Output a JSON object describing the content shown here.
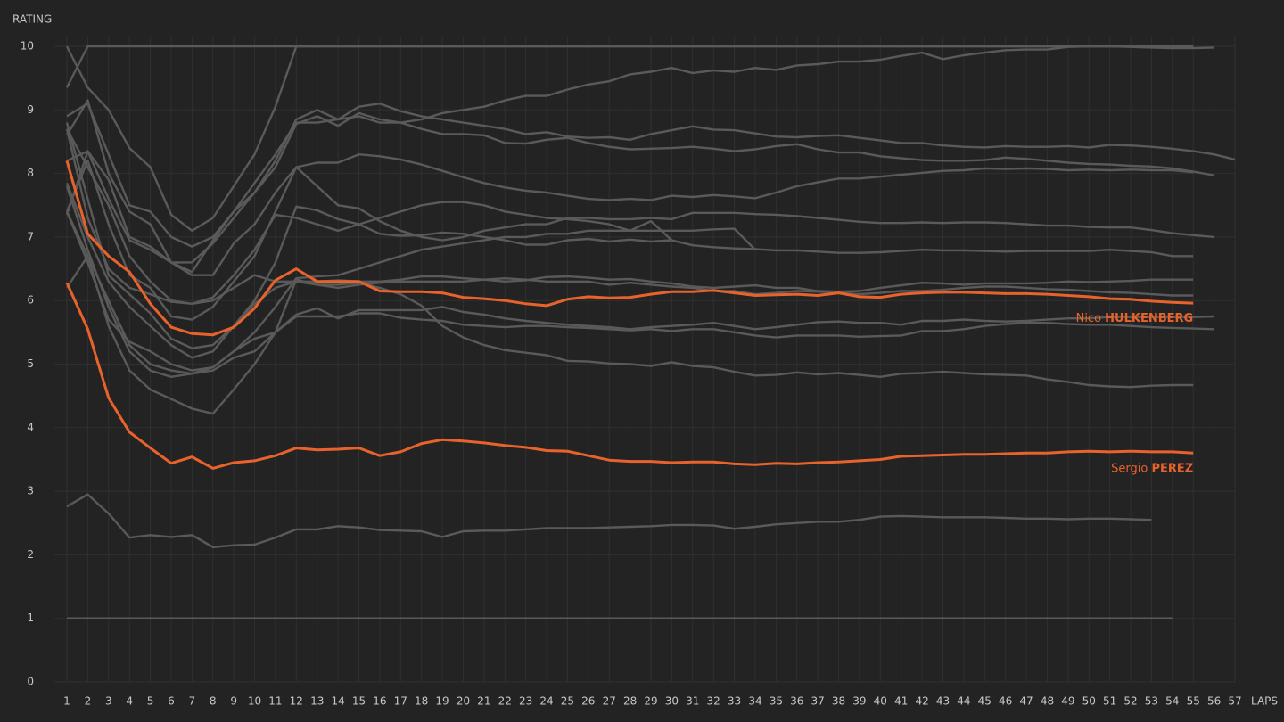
{
  "chart_data": {
    "type": "line",
    "y_label": "RATING",
    "x_label": "LAPS",
    "xlim": [
      1,
      57
    ],
    "ylim": [
      0,
      10
    ],
    "xticks": [
      1,
      2,
      3,
      4,
      5,
      6,
      7,
      8,
      9,
      10,
      11,
      12,
      13,
      14,
      15,
      16,
      17,
      18,
      19,
      20,
      21,
      22,
      23,
      24,
      25,
      26,
      27,
      28,
      29,
      30,
      31,
      32,
      33,
      34,
      35,
      36,
      37,
      38,
      39,
      40,
      41,
      42,
      43,
      44,
      45,
      46,
      47,
      48,
      49,
      50,
      51,
      52,
      53,
      54,
      55,
      56,
      57
    ],
    "yticks": [
      0,
      1,
      2,
      3,
      4,
      5,
      6,
      7,
      8,
      9,
      10
    ],
    "grid": true,
    "x": [
      1,
      2,
      3,
      4,
      5,
      6,
      7,
      8,
      9,
      10,
      11,
      12,
      13,
      14,
      15,
      16,
      17,
      18,
      19,
      20,
      21,
      22,
      23,
      24,
      25,
      26,
      27,
      28,
      29,
      30,
      31,
      32,
      33,
      34,
      35,
      36,
      37,
      38,
      39,
      40,
      41,
      42,
      43,
      44,
      45,
      46,
      47,
      48,
      49,
      50,
      51,
      52,
      53,
      54,
      55,
      56,
      57
    ],
    "series": [
      {
        "color": "#5a5a5a",
        "values": [
          1,
          1,
          1,
          1,
          1,
          1,
          1,
          1,
          1,
          1,
          1,
          1,
          1,
          1,
          1,
          1,
          1,
          1,
          1,
          1,
          1,
          1,
          1,
          1,
          1,
          1,
          1,
          1,
          1,
          1,
          1,
          1,
          1,
          1,
          1,
          1,
          1,
          1,
          1,
          1,
          1,
          1,
          1,
          1,
          1,
          1,
          1,
          1,
          1,
          1,
          1,
          1,
          1,
          1,
          null,
          null,
          null
        ]
      },
      {
        "color": "#5a5a5a",
        "values": [
          2.76,
          2.95,
          2.65,
          2.27,
          2.31,
          2.28,
          2.31,
          2.12,
          2.15,
          2.16,
          2.27,
          2.4,
          2.4,
          2.45,
          2.43,
          2.39,
          2.38,
          2.37,
          2.28,
          2.37,
          2.38,
          2.38,
          2.4,
          2.42,
          2.42,
          2.42,
          2.43,
          2.44,
          2.45,
          2.47,
          2.47,
          2.46,
          2.41,
          2.44,
          2.48,
          2.5,
          2.52,
          2.52,
          2.55,
          2.6,
          2.61,
          2.6,
          2.59,
          2.59,
          2.59,
          2.58,
          2.57,
          2.57,
          2.56,
          2.57,
          2.57,
          2.56,
          2.55,
          null,
          null,
          null,
          null
        ]
      },
      {
        "color": "#5a5a5a",
        "values": [
          9.35,
          10,
          10,
          10,
          10,
          10,
          10,
          10,
          10,
          10,
          10,
          10,
          10,
          10,
          10,
          10,
          10,
          10,
          10,
          10,
          10,
          10,
          10,
          10,
          10,
          10,
          10,
          10,
          10,
          10,
          10,
          10,
          10,
          10,
          10,
          10,
          10,
          10,
          10,
          10,
          10,
          10,
          10,
          10,
          10,
          10,
          10,
          10,
          10,
          10,
          10,
          10,
          10,
          10,
          10,
          null,
          null
        ]
      },
      {
        "color": "#5a5a5a",
        "values": [
          10,
          9.35,
          9.0,
          8.4,
          8.1,
          7.35,
          7.1,
          7.3,
          7.8,
          8.3,
          9.05,
          10,
          10,
          10,
          10,
          10,
          10,
          10,
          10,
          10,
          10,
          10,
          10,
          10,
          10,
          10,
          10,
          10,
          10,
          10,
          10,
          10,
          10,
          10,
          10,
          10,
          10,
          10,
          10,
          10,
          10,
          10,
          10,
          10,
          10,
          10,
          10,
          10,
          10,
          10,
          10,
          10,
          10,
          10,
          10,
          null,
          null
        ]
      },
      {
        "color": "#5a5a5a",
        "values": [
          8.6,
          9.15,
          8.0,
          7.4,
          7.2,
          6.6,
          6.45,
          6.95,
          7.4,
          7.85,
          8.3,
          8.8,
          8.8,
          8.85,
          8.9,
          8.8,
          8.8,
          8.85,
          8.95,
          9.0,
          9.05,
          9.15,
          9.22,
          9.22,
          9.32,
          9.4,
          9.45,
          9.56,
          9.6,
          9.66,
          9.58,
          9.62,
          9.6,
          9.66,
          9.63,
          9.7,
          9.72,
          9.76,
          9.76,
          9.79,
          9.85,
          9.9,
          9.8,
          9.86,
          9.9,
          9.94,
          9.95,
          9.95,
          9.99,
          10,
          10,
          9.99,
          9.98,
          9.97,
          9.97,
          9.98,
          null
        ]
      },
      {
        "color": "#5a5a5a",
        "values": [
          8.2,
          8.35,
          7.9,
          7.0,
          6.85,
          6.6,
          6.6,
          6.9,
          7.3,
          7.7,
          8.2,
          8.85,
          9.0,
          8.85,
          9.05,
          9.1,
          8.98,
          8.9,
          8.85,
          8.8,
          8.75,
          8.7,
          8.62,
          8.65,
          8.58,
          8.56,
          8.57,
          8.53,
          8.62,
          8.68,
          8.74,
          8.69,
          8.68,
          8.63,
          8.58,
          8.57,
          8.59,
          8.6,
          8.56,
          8.52,
          8.48,
          8.48,
          8.44,
          8.42,
          8.41,
          8.43,
          8.42,
          8.42,
          8.43,
          8.41,
          8.45,
          8.44,
          8.42,
          8.39,
          8.35,
          8.3,
          8.22
        ]
      },
      {
        "color": "#5a5a5a",
        "values": [
          8.9,
          9.1,
          8.3,
          7.5,
          7.4,
          7.0,
          6.85,
          7.0,
          7.4,
          7.7,
          8.1,
          8.78,
          8.9,
          8.75,
          8.95,
          8.85,
          8.8,
          8.7,
          8.62,
          8.62,
          8.6,
          8.48,
          8.47,
          8.53,
          8.56,
          8.48,
          8.42,
          8.38,
          8.39,
          8.4,
          8.42,
          8.39,
          8.35,
          8.38,
          8.43,
          8.46,
          8.38,
          8.33,
          8.33,
          8.27,
          8.24,
          8.21,
          8.2,
          8.2,
          8.21,
          8.25,
          8.23,
          8.2,
          8.17,
          8.15,
          8.14,
          8.12,
          8.11,
          8.08,
          8.03,
          7.97,
          null
        ]
      },
      {
        "color": "#5a5a5a",
        "values": [
          7.4,
          8.2,
          7.2,
          6.4,
          6.2,
          5.75,
          5.7,
          5.9,
          6.3,
          6.7,
          7.4,
          8.1,
          8.17,
          8.17,
          8.3,
          8.27,
          8.22,
          8.14,
          8.04,
          7.94,
          7.85,
          7.78,
          7.73,
          7.7,
          7.65,
          7.6,
          7.58,
          7.6,
          7.58,
          7.65,
          7.63,
          7.66,
          7.64,
          7.61,
          7.7,
          7.8,
          7.86,
          7.92,
          7.92,
          7.95,
          7.98,
          8.01,
          8.04,
          8.05,
          8.08,
          8.07,
          8.08,
          8.07,
          8.05,
          8.06,
          8.05,
          8.06,
          8.05,
          8.05,
          8.02,
          null,
          null
        ]
      },
      {
        "color": "#5a5a5a",
        "values": [
          7.35,
          8.35,
          7.6,
          6.95,
          6.8,
          6.6,
          6.4,
          6.4,
          6.9,
          7.2,
          7.7,
          8.1,
          7.8,
          7.5,
          7.45,
          7.25,
          7.1,
          7.0,
          6.95,
          7.0,
          7.1,
          7.15,
          7.2,
          7.2,
          7.3,
          7.3,
          7.28,
          7.28,
          7.3,
          7.28,
          7.38,
          7.38,
          7.38,
          7.36,
          7.35,
          7.33,
          7.3,
          7.27,
          7.24,
          7.22,
          7.22,
          7.23,
          7.22,
          7.23,
          7.23,
          7.22,
          7.2,
          7.18,
          7.18,
          7.16,
          7.15,
          7.15,
          7.11,
          7.06,
          7.03,
          7.0,
          null
        ]
      },
      {
        "color": "#5a5a5a",
        "values": [
          7.85,
          7.0,
          6.3,
          5.9,
          5.6,
          5.3,
          5.1,
          5.2,
          5.6,
          6.0,
          6.6,
          7.48,
          7.42,
          7.28,
          7.2,
          7.05,
          7.02,
          7.03,
          7.07,
          7.05,
          7.0,
          6.95,
          6.88,
          6.88,
          6.95,
          6.97,
          6.93,
          6.96,
          6.93,
          6.95,
          6.87,
          6.84,
          6.82,
          6.81,
          6.79,
          6.79,
          6.77,
          6.75,
          6.75,
          6.76,
          6.78,
          6.8,
          6.79,
          6.79,
          6.78,
          6.77,
          6.78,
          6.78,
          6.78,
          6.78,
          6.8,
          6.78,
          6.76,
          6.7,
          6.7,
          null,
          null
        ]
      },
      {
        "color": "#5a5a5a",
        "values": [
          8.7,
          8.1,
          7.5,
          6.7,
          6.3,
          6.0,
          5.95,
          6.05,
          6.4,
          6.8,
          7.35,
          7.3,
          7.2,
          7.1,
          7.2,
          7.3,
          7.4,
          7.5,
          7.55,
          7.55,
          7.5,
          7.4,
          7.35,
          7.3,
          7.28,
          7.25,
          7.2,
          7.1,
          7.25,
          6.95,
          null,
          null,
          null,
          null,
          null,
          null,
          null,
          null,
          null,
          null,
          null,
          null,
          null,
          null,
          null,
          null,
          null,
          null,
          null,
          null,
          null,
          null,
          null,
          null,
          null,
          null,
          null
        ]
      },
      {
        "color": "#5a5a5a",
        "values": [
          7.4,
          6.7,
          6.0,
          5.3,
          5.0,
          4.9,
          4.85,
          4.95,
          5.2,
          5.5,
          5.9,
          6.35,
          6.38,
          6.4,
          6.5,
          6.6,
          6.7,
          6.8,
          6.85,
          6.9,
          6.95,
          7.0,
          7.0,
          7.05,
          7.05,
          7.1,
          7.1,
          7.1,
          7.1,
          7.1,
          7.1,
          7.12,
          7.13,
          6.8,
          null,
          null,
          null,
          null,
          null,
          null,
          null,
          null,
          null,
          null,
          null,
          null,
          null,
          null,
          null,
          null,
          null,
          null,
          null,
          null,
          null,
          null,
          null
        ]
      },
      {
        "color": "#5a5a5a",
        "values": [
          8.8,
          7.6,
          6.4,
          6.1,
          5.8,
          5.4,
          5.25,
          5.3,
          5.6,
          5.95,
          6.2,
          6.3,
          6.3,
          6.32,
          6.3,
          6.3,
          6.33,
          6.38,
          6.38,
          6.35,
          6.33,
          6.3,
          6.32,
          6.37,
          6.38,
          6.36,
          6.33,
          6.34,
          6.3,
          6.27,
          6.22,
          6.2,
          6.22,
          6.24,
          6.2,
          6.2,
          6.15,
          6.14,
          6.15,
          6.2,
          6.24,
          6.28,
          6.27,
          6.25,
          6.27,
          6.27,
          6.27,
          6.28,
          6.3,
          6.29,
          6.3,
          6.31,
          6.33,
          6.33,
          6.33,
          null,
          null
        ]
      },
      {
        "color": "#5a5a5a",
        "values": [
          8.7,
          7.3,
          6.5,
          6.2,
          6.1,
          5.98,
          5.95,
          6.0,
          6.2,
          6.4,
          6.3,
          6.3,
          6.25,
          6.2,
          6.25,
          6.28,
          6.3,
          6.3,
          6.3,
          6.3,
          6.33,
          6.35,
          6.33,
          6.3,
          6.3,
          6.3,
          6.25,
          6.28,
          6.25,
          6.22,
          6.2,
          6.15,
          6.15,
          6.1,
          6.12,
          6.15,
          6.14,
          6.12,
          6.1,
          6.12,
          6.15,
          6.15,
          6.17,
          6.2,
          6.22,
          6.22,
          6.2,
          6.18,
          6.17,
          6.15,
          6.13,
          6.12,
          6.1,
          6.08,
          6.08,
          null,
          null
        ]
      },
      {
        "color": "#5a5a5a",
        "values": [
          7.4,
          6.6,
          5.7,
          5.35,
          5.2,
          5.0,
          4.9,
          4.95,
          5.2,
          5.4,
          5.5,
          5.78,
          5.88,
          5.72,
          5.85,
          5.85,
          5.85,
          5.85,
          5.9,
          5.82,
          5.78,
          5.72,
          5.68,
          5.65,
          5.62,
          5.6,
          5.58,
          5.55,
          5.58,
          5.6,
          5.62,
          5.65,
          5.6,
          5.55,
          5.58,
          5.62,
          5.66,
          5.67,
          5.65,
          5.65,
          5.62,
          5.68,
          5.68,
          5.7,
          5.68,
          5.67,
          5.68,
          5.7,
          5.72,
          5.72,
          5.74,
          5.74,
          5.74,
          5.74,
          5.74,
          5.75,
          null
        ]
      },
      {
        "color": "#5a5a5a",
        "values": [
          7.8,
          6.8,
          5.9,
          5.2,
          4.9,
          4.8,
          4.85,
          4.9,
          5.1,
          5.2,
          5.5,
          5.75,
          5.75,
          5.75,
          5.8,
          5.8,
          5.73,
          5.7,
          5.68,
          5.62,
          5.6,
          5.58,
          5.6,
          5.6,
          5.58,
          5.57,
          5.55,
          5.53,
          5.55,
          5.52,
          5.55,
          5.55,
          5.5,
          5.45,
          5.42,
          5.45,
          5.45,
          5.45,
          5.43,
          5.44,
          5.45,
          5.52,
          5.52,
          5.55,
          5.6,
          5.63,
          5.65,
          5.65,
          5.63,
          5.62,
          5.62,
          5.6,
          5.58,
          5.57,
          5.56,
          5.55,
          null
        ]
      },
      {
        "color": "#5a5a5a",
        "values": [
          6.2,
          6.7,
          5.6,
          4.9,
          4.6,
          4.45,
          4.3,
          4.22,
          4.6,
          5.0,
          5.5,
          6.33,
          6.25,
          6.25,
          6.28,
          6.2,
          6.1,
          5.92,
          5.6,
          5.42,
          5.3,
          5.22,
          5.18,
          5.14,
          5.05,
          5.04,
          5.01,
          5.0,
          4.97,
          5.03,
          4.97,
          4.95,
          4.88,
          4.82,
          4.83,
          4.87,
          4.84,
          4.86,
          4.83,
          4.8,
          4.85,
          4.86,
          4.88,
          4.86,
          4.84,
          4.83,
          4.82,
          4.76,
          4.72,
          4.67,
          4.65,
          4.64,
          4.66,
          4.67,
          4.67,
          null,
          null
        ]
      },
      {
        "color": "#e8622c",
        "given_name": "Nico",
        "family_name": "HULKENBERG",
        "values": [
          8.2,
          7.05,
          6.7,
          6.45,
          5.95,
          5.58,
          5.48,
          5.46,
          5.58,
          5.88,
          6.32,
          6.5,
          6.3,
          6.3,
          6.3,
          6.15,
          6.14,
          6.14,
          6.12,
          6.05,
          6.03,
          6.0,
          5.95,
          5.92,
          6.02,
          6.06,
          6.04,
          6.05,
          6.1,
          6.14,
          6.14,
          6.16,
          6.12,
          6.08,
          6.09,
          6.1,
          6.08,
          6.12,
          6.06,
          6.05,
          6.1,
          6.12,
          6.13,
          6.13,
          6.12,
          6.11,
          6.11,
          6.1,
          6.08,
          6.06,
          6.03,
          6.02,
          5.99,
          5.97,
          5.96,
          null,
          null
        ]
      },
      {
        "color": "#e8622c",
        "given_name": "Sergio",
        "family_name": "PEREZ",
        "values": [
          6.28,
          5.55,
          4.47,
          3.93,
          3.68,
          3.44,
          3.54,
          3.36,
          3.45,
          3.48,
          3.56,
          3.68,
          3.65,
          3.66,
          3.68,
          3.56,
          3.62,
          3.75,
          3.81,
          3.79,
          3.76,
          3.72,
          3.69,
          3.64,
          3.63,
          3.56,
          3.49,
          3.47,
          3.47,
          3.45,
          3.46,
          3.46,
          3.43,
          3.42,
          3.44,
          3.43,
          3.45,
          3.46,
          3.48,
          3.5,
          3.55,
          3.56,
          3.57,
          3.58,
          3.58,
          3.59,
          3.6,
          3.6,
          3.62,
          3.63,
          3.62,
          3.63,
          3.62,
          3.62,
          3.6,
          null,
          null
        ]
      }
    ]
  }
}
